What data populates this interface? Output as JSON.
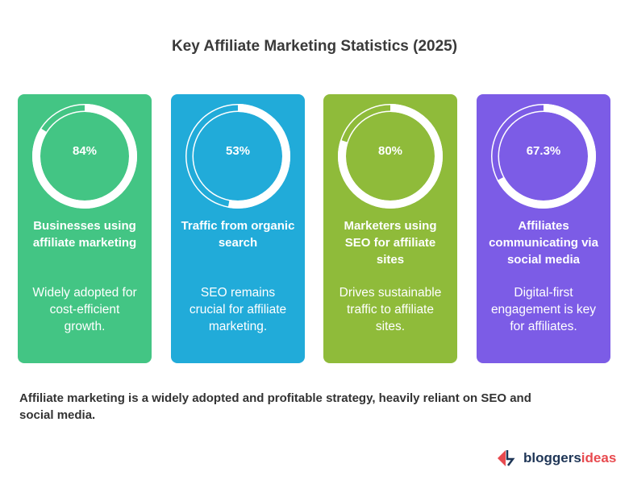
{
  "title": "Key Affiliate Marketing Statistics (2025)",
  "cards": [
    {
      "value": "84%",
      "percent": 84,
      "color": "#43c584",
      "heading": "Businesses using affiliate marketing",
      "description": "Widely adopted for cost-efficient growth."
    },
    {
      "value": "53%",
      "percent": 53,
      "color": "#21abd9",
      "heading": "Traffic from organic search",
      "description": "SEO remains crucial for affiliate marketing."
    },
    {
      "value": "80%",
      "percent": 80,
      "color": "#8fbb3a",
      "heading": "Marketers using SEO for affiliate sites",
      "description": "Drives sustainable traffic to affiliate sites."
    },
    {
      "value": "67.3%",
      "percent": 67.3,
      "color": "#7c5ce6",
      "heading": "Affiliates communicating via social media",
      "description": "Digital-first engagement is key for affiliates."
    }
  ],
  "summary": "Affiliate marketing is a widely adopted and profitable strategy, heavily reliant on SEO and social media.",
  "logo": {
    "part1": "bloggers",
    "part2": "ideas"
  }
}
